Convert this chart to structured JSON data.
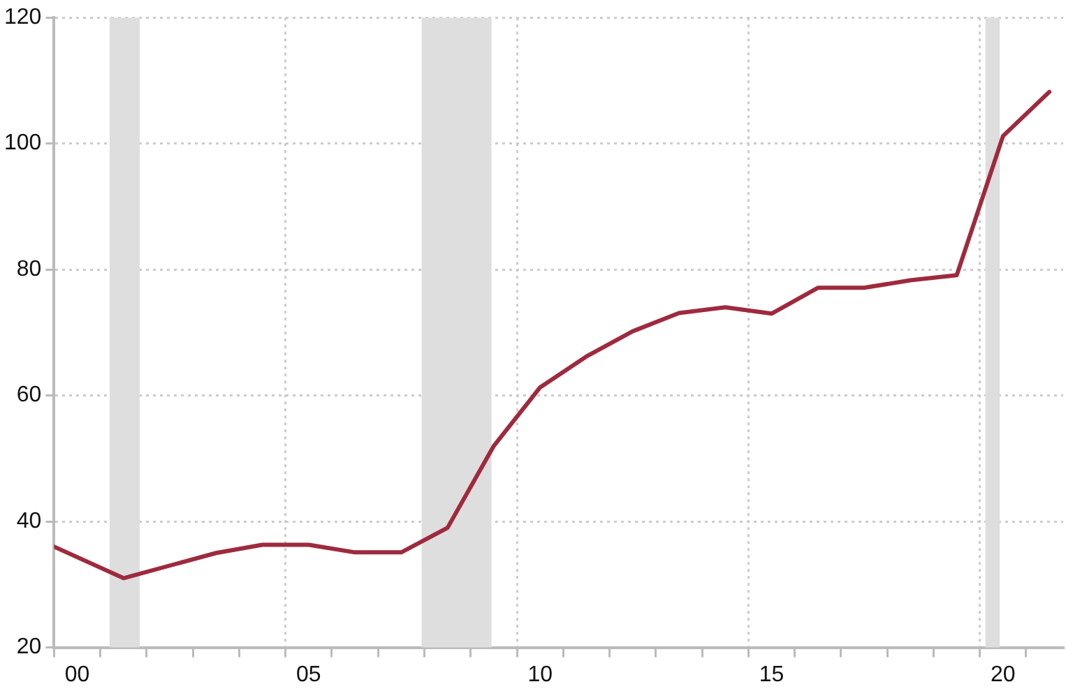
{
  "chart_data": {
    "type": "line",
    "x": [
      1999.5,
      2001,
      2003,
      2004,
      2005,
      2006,
      2007,
      2008,
      2009,
      2010,
      2011,
      2012,
      2013,
      2014,
      2015,
      2016,
      2017,
      2018,
      2019,
      2020,
      2021
    ],
    "series": [
      {
        "color": "#9e2a3e",
        "values": [
          36,
          31,
          35,
          36.3,
          36.3,
          35.1,
          35.1,
          39,
          52,
          61.3,
          66.2,
          70.2,
          73.1,
          74,
          73,
          77.1,
          77.1,
          78.3,
          79.1,
          101.2,
          108.2
        ]
      }
    ],
    "xlim": [
      1999.5,
      2021.3
    ],
    "xticks": [
      {
        "value": 1999.5,
        "label": null
      },
      {
        "value": 2000,
        "label": "00"
      },
      {
        "value": 2000.5,
        "label": null
      },
      {
        "value": 2001.5,
        "label": null
      },
      {
        "value": 2002.5,
        "label": null
      },
      {
        "value": 2003.5,
        "label": null
      },
      {
        "value": 2004.5,
        "label": null
      },
      {
        "value": 2005,
        "label": "05"
      },
      {
        "value": 2005.5,
        "label": null
      },
      {
        "value": 2006.5,
        "label": null
      },
      {
        "value": 2007.5,
        "label": null
      },
      {
        "value": 2008.5,
        "label": null
      },
      {
        "value": 2009.5,
        "label": null
      },
      {
        "value": 2010,
        "label": "10"
      },
      {
        "value": 2010.5,
        "label": null
      },
      {
        "value": 2011.5,
        "label": null
      },
      {
        "value": 2012.5,
        "label": null
      },
      {
        "value": 2013.5,
        "label": null
      },
      {
        "value": 2014.5,
        "label": null
      },
      {
        "value": 2015,
        "label": "15"
      },
      {
        "value": 2015.5,
        "label": null
      },
      {
        "value": 2016.5,
        "label": null
      },
      {
        "value": 2017.5,
        "label": null
      },
      {
        "value": 2018.5,
        "label": null
      },
      {
        "value": 2019.5,
        "label": null
      },
      {
        "value": 2020,
        "label": "20"
      },
      {
        "value": 2020.5,
        "label": null
      }
    ],
    "ylim": [
      20,
      120
    ],
    "yticks": [
      20,
      40,
      60,
      80,
      100,
      120
    ],
    "grid": true,
    "legend": false,
    "marker": "none",
    "line_style": "solid",
    "bands": [
      {
        "axis": "x",
        "from": 2000.7,
        "to": 2001.35,
        "color": "#dedede"
      },
      {
        "axis": "x",
        "from": 2007.44,
        "to": 2008.95,
        "color": "#dedede"
      },
      {
        "axis": "x",
        "from": 2019.62,
        "to": 2019.93,
        "color": "#dedede"
      }
    ]
  }
}
